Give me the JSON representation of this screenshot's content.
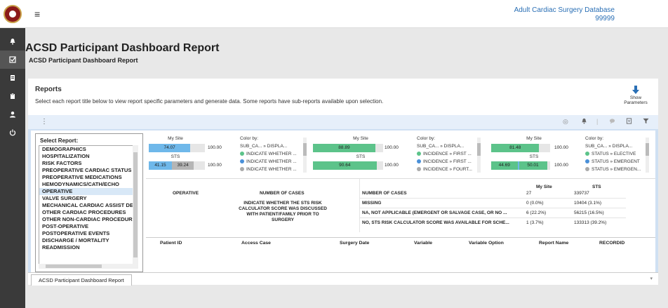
{
  "header": {
    "db_name": "Adult Cardiac Surgery Database",
    "db_number": "99999",
    "menu_glyph": "≡"
  },
  "sidebar": {
    "icons": [
      "bell-icon",
      "checkbox-icon",
      "document-icon",
      "clipboard-icon",
      "user-icon",
      "power-icon"
    ]
  },
  "page": {
    "title": "ACSD Participant Dashboard Report",
    "subtitle": "ACSD Participant Dashboard Report"
  },
  "reports_card": {
    "title": "Reports",
    "description": "Select each report title below to view report specific parameters and generate data. Some reports have sub-reports available upon selection.",
    "show_params_line1": "Show",
    "show_params_line2": "Parameters"
  },
  "select_report": {
    "label": "Select Report:",
    "items": [
      "DEMOGRAPHICS",
      "HOSPITALIZATION",
      "RISK FACTORS",
      "PREOPERATIVE CARDIAC STATUS",
      "PREOPERATIVE MEDICATIONS",
      "HEMODYNAMICS/CATH/ECHO",
      "OPERATIVE",
      "VALVE SURGERY",
      "MECHANICAL CARDIAC ASSIST DEVICES",
      "OTHER CARDIAC PROCEDURES",
      "OTHER NON-CARDIAC PROCEDURES",
      "POST-OPERATIVE",
      "POSTOPERATIVE EVENTS",
      "DISCHARGE / MORTALITY",
      "READMISSION"
    ],
    "selected_index": 6
  },
  "panels": [
    {
      "my_site_label": "My Site",
      "sts_label": "STS",
      "my_site_value": "74.07",
      "my_site_fraction": 0.7407,
      "sts_values": [
        "41.15",
        "39.24"
      ],
      "sts_fractions": [
        0.4115,
        0.3924
      ],
      "max_label": "100.00",
      "max_label_2": "100.00",
      "color_by_label": "Color by:",
      "color_by_path": "SUB_CA...  »  DISPLA...",
      "legend": [
        {
          "color": "#5cc38a",
          "text": "INDICATE WHETHER ..."
        },
        {
          "color": "#4a90d9",
          "text": "INDICATE WHETHER ..."
        },
        {
          "color": "#aaaaaa",
          "text": "INDICATE WHETHER ..."
        }
      ]
    },
    {
      "my_site_label": "My Site",
      "sts_label": "STS",
      "my_site_value": "88.89",
      "my_site_fraction": 0.8889,
      "sts_values": [
        "90.64"
      ],
      "sts_fractions": [
        0.9064
      ],
      "max_label": "100.00",
      "max_label_2": "100.00",
      "color_by_label": "Color by:",
      "color_by_path": "SUB_CA...  »  DISPLA...",
      "legend": [
        {
          "color": "#5cc38a",
          "text": "INCIDENCE » FIRST ..."
        },
        {
          "color": "#4a90d9",
          "text": "INCIDENCE » FIRST ..."
        },
        {
          "color": "#aaaaaa",
          "text": "INCIDENCE » FOURT..."
        }
      ]
    },
    {
      "my_site_label": "My Site",
      "sts_label": "STS",
      "my_site_value": "81.48",
      "my_site_fraction": 0.8148,
      "sts_values": [
        "44.69",
        "50.01"
      ],
      "sts_fractions": [
        0.4469,
        0.5001
      ],
      "max_label": "100.00",
      "max_label_2": "100.00",
      "color_by_label": "Color by:",
      "color_by_path": "SUB_CA...  »  DISPLA...",
      "legend": [
        {
          "color": "#5cc38a",
          "text": "STATUS » ELECTIVE"
        },
        {
          "color": "#4a90d9",
          "text": "STATUS » EMERGENT"
        },
        {
          "color": "#aaaaaa",
          "text": "STATUS » EMERGEN..."
        }
      ]
    }
  ],
  "operative_table": {
    "section": "OPERATIVE",
    "col_cases": "NUMBER OF CASES",
    "question": "INDICATE WHETHER THE STS RISK CALCULATOR SCORE WAS DISCUSSED WITH PATIENT/FAMILY PRIOR TO SURGERY",
    "col_mysite": "My Site",
    "col_sts": "STS",
    "rows": [
      {
        "label": "NUMBER OF CASES",
        "mysite": "27",
        "sts": "339737"
      },
      {
        "label": "MISSING",
        "mysite": "0 (0.0%)",
        "sts": "10404 (3.1%)"
      },
      {
        "label": "NA, NOT APPLICABLE (EMERGENT OR SALVAGE CASE, OR NO ...",
        "mysite": "6 (22.2%)",
        "sts": "56215 (16.5%)"
      },
      {
        "label": "NO, STS RISK CALCULATOR SCORE WAS AVAILABLE FOR SCHE...",
        "mysite": "1 (3.7%)",
        "sts": "133313 (39.2%)"
      }
    ]
  },
  "detail_table": {
    "columns": [
      "Patient ID",
      "Access Case",
      "Surgery Date",
      "Variable",
      "Variable Option",
      "Report Name",
      "RECORDID"
    ]
  },
  "bottom_tab": {
    "label": "ACSD Participant Dashboard Report"
  }
}
